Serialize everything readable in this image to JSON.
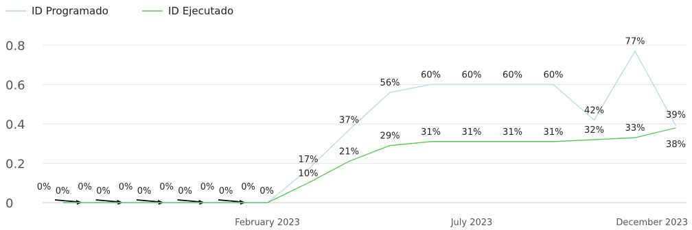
{
  "chart_data": {
    "type": "line",
    "x": [
      "2022-09",
      "2022-10",
      "2022-11",
      "2022-12",
      "2023-01",
      "2023-02",
      "2023-03",
      "2023-04",
      "2023-05",
      "2023-06",
      "2023-07",
      "2023-08",
      "2023-09",
      "2023-10",
      "2023-11",
      "2023-12"
    ],
    "x_ticks": [
      {
        "x": "2023-02",
        "label": "February 2023"
      },
      {
        "x": "2023-07",
        "label": "July 2023"
      },
      {
        "x": "2023-12",
        "label": "December 2023"
      }
    ],
    "ylim": [
      0,
      0.8
    ],
    "yticks": [
      0,
      0.2,
      0.4,
      0.6,
      0.8
    ],
    "ytick_labels": [
      "0",
      "0.2",
      "0.4",
      "0.6",
      "0.8"
    ],
    "grid": true,
    "legend": "top-left",
    "series": [
      {
        "name": "ID Programado",
        "color": "#b9dbe8",
        "values": [
          0,
          0,
          0,
          0,
          0,
          0,
          0.17,
          0.37,
          0.56,
          0.6,
          0.6,
          0.6,
          0.6,
          0.42,
          0.77,
          0.39
        ],
        "labels": [
          "0%",
          "0%",
          "0%",
          "0%",
          "0%",
          "0%",
          "17%",
          "37%",
          "56%",
          "60%",
          "60%",
          "60%",
          "60%",
          "42%",
          "77%",
          "39%"
        ]
      },
      {
        "name": "ID Ejecutado",
        "color": "#5cc85c",
        "values": [
          0,
          0,
          0,
          0,
          0,
          0,
          0.1,
          0.21,
          0.29,
          0.31,
          0.31,
          0.31,
          0.31,
          0.32,
          0.33,
          0.38
        ],
        "labels": [
          "0%",
          "0%",
          "0%",
          "0%",
          "0%",
          "0%",
          "10%",
          "21%",
          "29%",
          "31%",
          "31%",
          "31%",
          "31%",
          "32%",
          "33%",
          "38%"
        ]
      }
    ]
  }
}
